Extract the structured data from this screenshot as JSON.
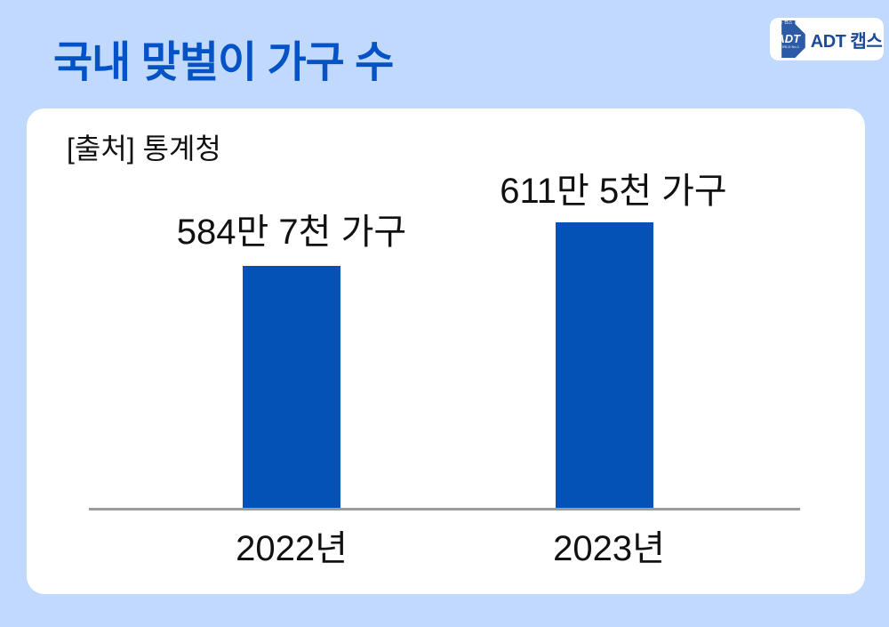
{
  "header": {
    "title": "국내 맞벌이 가구 수"
  },
  "logo": {
    "wordmark": "ADT 캡스",
    "badge_text": "ADT",
    "badge_top_text": "캡스",
    "badge_bottom_text": "WORLD No.1"
  },
  "card": {
    "source": "[출처] 통계청"
  },
  "chart_data": {
    "type": "bar",
    "title": "국내 맞벌이 가구 수",
    "source": "[출처] 통계청",
    "categories": [
      "2022년",
      "2023년"
    ],
    "values_households": [
      5847000,
      6115000
    ],
    "value_labels": [
      "584만 7천 가구",
      "611만 5천 가구"
    ],
    "unit": "가구",
    "legend": "none",
    "gridlines": false,
    "bar_color": "#0552b6",
    "axis_line_color": "#9b9b9b"
  },
  "colors": {
    "background": "#c0d9fd",
    "card_background": "#ffffff",
    "title_text": "#0453c6",
    "bar": "#0552b6",
    "axis_line": "#9b9b9b",
    "label_text": "#111111",
    "logo_badge": "#2b5aa7",
    "logo_wordmark": "#1c4a96"
  }
}
